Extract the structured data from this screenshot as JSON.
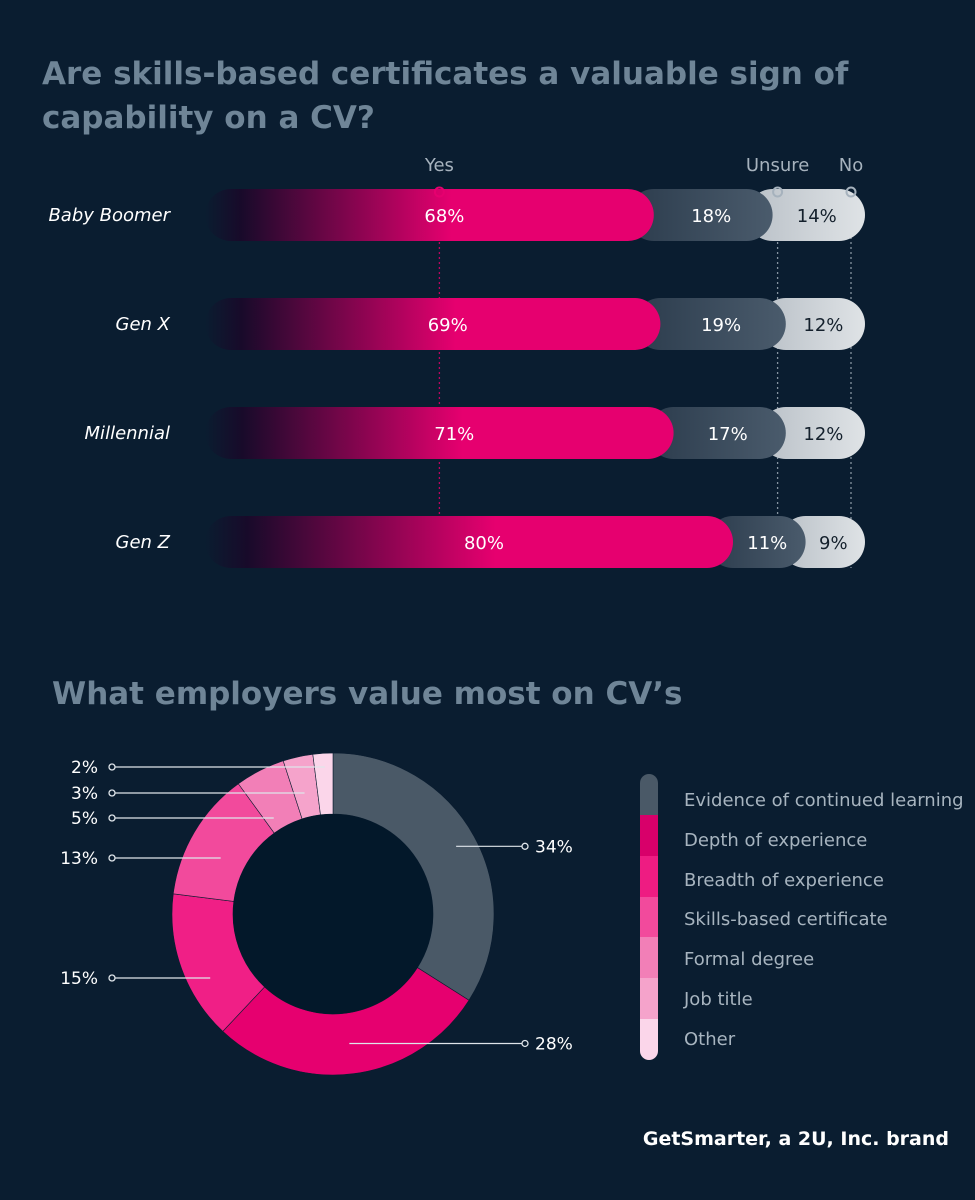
{
  "title": "Are skills-based certificates a valuable sign of capability on a CV?",
  "colors": {
    "background": "#0a1d30",
    "yes": "#e6006f",
    "unsure": "#3e5062",
    "no": "#c9ced3",
    "title": "#6f8597"
  },
  "chart_data": [
    {
      "type": "bar",
      "orientation": "horizontal-stacked",
      "title": "Are skills-based certificates a valuable sign of capability on a CV?",
      "legend": [
        "Yes",
        "Unsure",
        "No"
      ],
      "categories": [
        "Baby Boomer",
        "Gen X",
        "Millennial",
        "Gen Z"
      ],
      "series": [
        {
          "name": "Yes",
          "values": [
            68,
            69,
            71,
            80
          ],
          "labels": [
            "68%",
            "69%",
            "71%",
            "80%"
          ]
        },
        {
          "name": "Unsure",
          "values": [
            18,
            19,
            17,
            11
          ],
          "labels": [
            "18%",
            "19%",
            "17%",
            "11%"
          ]
        },
        {
          "name": "No",
          "values": [
            14,
            12,
            12,
            9
          ],
          "labels": [
            "14%",
            "12%",
            "12%",
            "9%"
          ]
        }
      ]
    },
    {
      "type": "pie",
      "variant": "donut",
      "title": "What employers value most on CV’s",
      "categories": [
        "Evidence of continued learning",
        "Depth of experience",
        "Breadth of experience",
        "Skills-based certificate",
        "Formal degree",
        "Job title",
        "Other"
      ],
      "values": [
        34,
        28,
        15,
        13,
        5,
        3,
        2
      ],
      "labels": [
        "34%",
        "28%",
        "15%",
        "13%",
        "5%",
        "3%",
        "2%"
      ],
      "colors": [
        "#4a5967",
        "#e6006f",
        "#f01f86",
        "#f24a9c",
        "#f27fb7",
        "#f5a3cb",
        "#fbd6ea"
      ]
    }
  ],
  "footer": {
    "brand": "GetSmarter, a 2U, Inc. brand"
  }
}
